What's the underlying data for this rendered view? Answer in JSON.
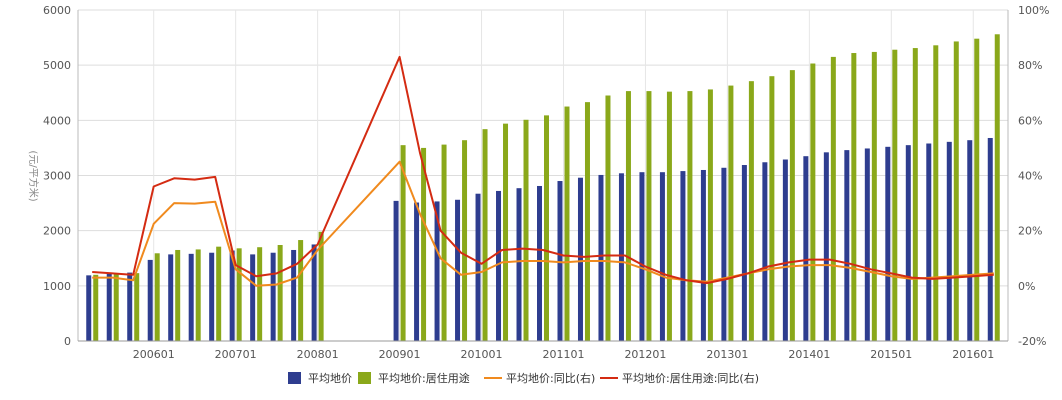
{
  "chart_data": {
    "type": "bar",
    "ylabel": "(元/平方米)",
    "ylim": [
      0,
      6000
    ],
    "y_ticks": [
      "0",
      "1000",
      "2000",
      "3000",
      "4000",
      "5000",
      "6000"
    ],
    "y2lim": [
      -20,
      100
    ],
    "y2_ticks": [
      "-20%",
      "0%",
      "20%",
      "40%",
      "60%",
      "80%",
      "100%"
    ],
    "x_tick_labels": [
      "200601",
      "200701",
      "200801",
      "200901",
      "201001",
      "201101",
      "201201",
      "201301",
      "201401",
      "201501",
      "201601"
    ],
    "grid": true,
    "legend_position": "bottom",
    "series": [
      {
        "name": "平均地价",
        "kind": "bar",
        "axis": "left",
        "color": "#2e3d8f",
        "values": [
          1190,
          1220,
          1240,
          1470,
          1570,
          1580,
          1600,
          1640,
          1570,
          1600,
          1650,
          1750,
          null,
          null,
          null,
          2540,
          2510,
          2530,
          2560,
          2670,
          2720,
          2770,
          2810,
          2900,
          2960,
          3010,
          3040,
          3060,
          3060,
          3080,
          3100,
          3140,
          3190,
          3240,
          3290,
          3350,
          3420,
          3460,
          3490,
          3520,
          3550,
          3580,
          3610,
          3640,
          3680
        ]
      },
      {
        "name": "平均地价:居住用途",
        "kind": "bar",
        "axis": "left",
        "color": "#8aa81a",
        "values": [
          1200,
          1210,
          1230,
          1590,
          1650,
          1660,
          1710,
          1680,
          1700,
          1740,
          1830,
          1980,
          null,
          null,
          null,
          3550,
          3500,
          3560,
          3640,
          3840,
          3940,
          4010,
          4090,
          4250,
          4330,
          4450,
          4530,
          4530,
          4520,
          4530,
          4560,
          4630,
          4710,
          4800,
          4910,
          5030,
          5150,
          5220,
          5240,
          5280,
          5310,
          5360,
          5430,
          5480,
          5560
        ]
      },
      {
        "name": "平均地价:同比(右)",
        "kind": "line",
        "axis": "right",
        "color": "#f08a1e",
        "values": [
          3,
          3,
          2,
          22.5,
          30,
          29.8,
          30.5,
          6,
          0,
          0.5,
          3,
          13,
          null,
          null,
          null,
          45,
          26,
          10,
          4,
          5,
          8.5,
          9,
          9,
          8.5,
          9,
          9,
          8.5,
          6,
          3,
          2,
          1.5,
          3,
          4.5,
          6,
          7,
          7.5,
          7.5,
          6.5,
          5,
          3.5,
          2.5,
          3,
          3.5,
          4,
          4.5
        ]
      },
      {
        "name": "平均地价:居住用途:同比(右)",
        "kind": "line",
        "axis": "right",
        "color": "#d42b12",
        "values": [
          5,
          4.5,
          4,
          36,
          39,
          38.5,
          39.5,
          7.5,
          3.5,
          4.5,
          8,
          15,
          null,
          null,
          null,
          83,
          48,
          20,
          12,
          8,
          13,
          13.5,
          13,
          11,
          10.5,
          11,
          11,
          7,
          4,
          2,
          1,
          2.5,
          4.5,
          7,
          8.5,
          9.5,
          9.5,
          8,
          6,
          4.5,
          3,
          2.5,
          3,
          3.5,
          4
        ]
      }
    ],
    "legend": [
      {
        "label": "平均地价",
        "color": "#2e3d8f",
        "shape": "bar"
      },
      {
        "label": "平均地价:居住用途",
        "color": "#8aa81a",
        "shape": "bar"
      },
      {
        "label": "平均地价:同比(右)",
        "color": "#f08a1e",
        "shape": "line"
      },
      {
        "label": "平均地价:居住用途:同比(右)",
        "color": "#d42b12",
        "shape": "line"
      }
    ]
  }
}
